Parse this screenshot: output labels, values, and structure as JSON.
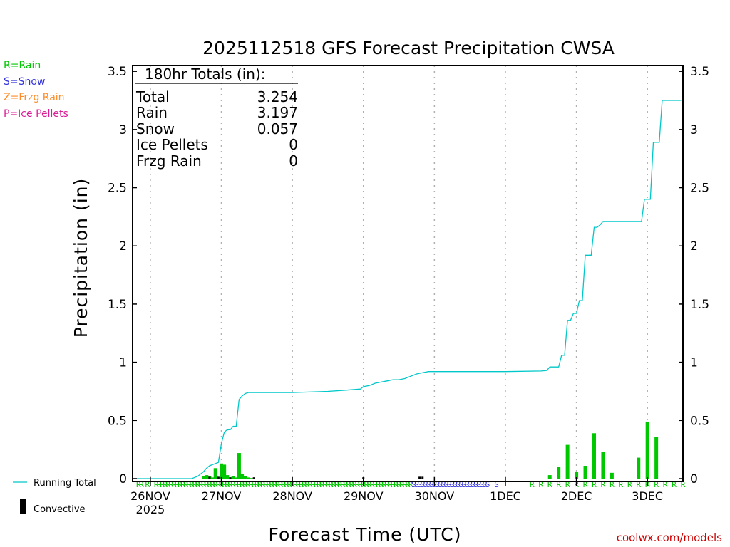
{
  "colors": {
    "rain": "#00c800",
    "snow": "#3232dc",
    "frzg": "#ff8c28",
    "ice": "#dc1e96",
    "running": "#00c8c8",
    "convective": "#000000",
    "grid": "#b0b0b0",
    "credit": "#cc0000"
  },
  "legend_left": {
    "rain": "R=Rain",
    "snow": "S=Snow",
    "frzg": "Z=Frzg Rain",
    "ice": "P=Ice Pellets"
  },
  "legend_bottom": {
    "running": "Running Total",
    "convective": "Convective"
  },
  "totals": {
    "header": "180hr Totals (in):",
    "rows": [
      {
        "label": "Total",
        "value": "3.254"
      },
      {
        "label": "Rain",
        "value": "3.197"
      },
      {
        "label": "Snow",
        "value": "0.057"
      },
      {
        "label": "Ice Pellets",
        "value": "0"
      },
      {
        "label": "Frzg Rain",
        "value": "0"
      }
    ]
  },
  "credit": "coolwx.com/models",
  "chart_data": {
    "type": "bar",
    "title": "2025112518 GFS Forecast Precipitation CWSA",
    "xlabel": "Forecast Time (UTC)",
    "ylabel": "Precipitation (in)",
    "ylim": [
      0,
      3.55
    ],
    "yticks": [
      "0",
      "0.5",
      "1",
      "1.5",
      "2",
      "2.5",
      "3",
      "3.5"
    ],
    "ytick_values": [
      0,
      0.5,
      1,
      1.5,
      2,
      2.5,
      3,
      3.5
    ],
    "xlim_hours": [
      -6,
      180
    ],
    "xticks": [
      {
        "hour": 0,
        "label": "26NOV",
        "sub": "2025"
      },
      {
        "hour": 24,
        "label": "27NOV",
        "sub": ""
      },
      {
        "hour": 48,
        "label": "28NOV",
        "sub": ""
      },
      {
        "hour": 72,
        "label": "29NOV",
        "sub": ""
      },
      {
        "hour": 96,
        "label": "30NOV",
        "sub": ""
      },
      {
        "hour": 120,
        "label": "1DEC",
        "sub": ""
      },
      {
        "hour": 144,
        "label": "2DEC",
        "sub": ""
      },
      {
        "hour": 168,
        "label": "3DEC",
        "sub": ""
      }
    ],
    "series": [
      {
        "name": "Running Total",
        "hours": [
          -6,
          14,
          16,
          18,
          19,
          20,
          21,
          22,
          23,
          24,
          25,
          26,
          27,
          28,
          29,
          30,
          31,
          32,
          33,
          48,
          60,
          66,
          71,
          72,
          74,
          76,
          78,
          80,
          82,
          84,
          86,
          88,
          90,
          92,
          94,
          96,
          98,
          102,
          120,
          132,
          134,
          135,
          137,
          138,
          139,
          140,
          141,
          142,
          143,
          144,
          145,
          146,
          147,
          148,
          149,
          150,
          151,
          152,
          153,
          154,
          155,
          157,
          158,
          166,
          167,
          168,
          169,
          170,
          171,
          172,
          173,
          174,
          175,
          176,
          177,
          178,
          179,
          180
        ],
        "values": [
          0.0,
          0.0,
          0.02,
          0.06,
          0.09,
          0.11,
          0.12,
          0.13,
          0.14,
          0.3,
          0.4,
          0.42,
          0.42,
          0.45,
          0.45,
          0.68,
          0.71,
          0.73,
          0.74,
          0.74,
          0.75,
          0.76,
          0.77,
          0.79,
          0.8,
          0.82,
          0.83,
          0.84,
          0.85,
          0.85,
          0.86,
          0.88,
          0.9,
          0.91,
          0.92,
          0.92,
          0.92,
          0.92,
          0.92,
          0.925,
          0.93,
          0.96,
          0.96,
          0.96,
          1.06,
          1.06,
          1.36,
          1.36,
          1.42,
          1.42,
          1.53,
          1.53,
          1.92,
          1.92,
          1.92,
          2.16,
          2.16,
          2.18,
          2.21,
          2.21,
          2.21,
          2.21,
          2.21,
          2.21,
          2.4,
          2.4,
          2.4,
          2.89,
          2.89,
          2.89,
          3.25,
          3.25,
          3.25,
          3.25,
          3.25,
          3.25,
          3.25,
          3.254
        ]
      },
      {
        "name": "Rain",
        "hours": [
          18,
          19,
          20,
          21,
          22,
          24,
          25,
          26,
          27,
          28,
          29,
          30,
          31,
          32,
          33,
          34,
          135,
          138,
          141,
          144,
          147,
          150,
          153,
          156,
          165,
          168,
          171
        ],
        "values": [
          0.02,
          0.03,
          0.02,
          0.01,
          0.09,
          0.13,
          0.12,
          0.03,
          0.01,
          0.02,
          0.01,
          0.22,
          0.04,
          0.02,
          0.01,
          0.005,
          0.03,
          0.1,
          0.29,
          0.06,
          0.11,
          0.39,
          0.23,
          0.05,
          0.18,
          0.49,
          0.36
        ]
      },
      {
        "name": "Convective",
        "hours": [
          20,
          23,
          27,
          35,
          72,
          91,
          92
        ],
        "values": [
          0.01,
          0.01,
          0.005,
          0.005,
          0.005,
          0.01,
          0.01
        ]
      }
    ],
    "type_marks": {
      "rain_hours": [
        -4,
        -3,
        -1,
        2,
        3,
        4,
        5,
        6,
        7,
        8,
        9,
        10,
        11,
        12,
        13,
        14,
        15,
        16,
        17,
        18,
        19,
        20,
        21,
        22,
        23,
        24,
        25,
        26,
        27,
        28,
        29,
        30,
        31,
        32,
        33,
        34,
        35,
        36,
        37,
        38,
        39,
        40,
        41,
        42,
        43,
        44,
        45,
        46,
        47,
        48,
        49,
        50,
        51,
        52,
        53,
        54,
        55,
        56,
        57,
        58,
        59,
        60,
        61,
        62,
        63,
        64,
        65,
        66,
        67,
        68,
        69,
        70,
        71,
        72,
        73,
        74,
        75,
        76,
        77,
        78,
        79,
        80,
        81,
        82,
        83,
        84,
        85,
        86,
        87,
        88,
        129,
        132,
        135,
        138,
        141,
        144,
        147,
        150,
        153,
        156,
        159,
        162,
        165,
        168,
        171,
        174,
        177,
        180
      ],
      "rain_letter": "R",
      "snow_hours": [
        89,
        90,
        91,
        92,
        93,
        94,
        95,
        96,
        97,
        98,
        99,
        100,
        101,
        102,
        103,
        104,
        105,
        106,
        107,
        108,
        109,
        110,
        111,
        112,
        113,
        114,
        117
      ],
      "snow_letter": "S"
    }
  }
}
